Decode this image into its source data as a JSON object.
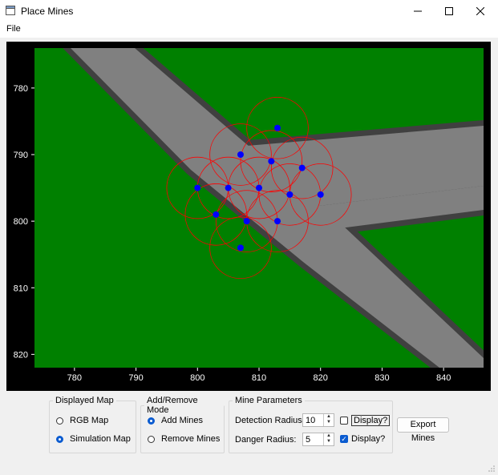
{
  "window": {
    "title": "Place Mines"
  },
  "menu": {
    "file": "File"
  },
  "plot": {
    "x_ticks": [
      "780",
      "790",
      "800",
      "810",
      "820",
      "830",
      "840"
    ],
    "y_ticks": [
      "780",
      "790",
      "800",
      "810",
      "820"
    ],
    "colors": {
      "ground": "#008000",
      "road": "#808080",
      "edge": "#404040",
      "mine": "#0000ff",
      "radius": "#ff0000"
    }
  },
  "chart_data": {
    "type": "scatter",
    "title": "",
    "xlabel": "",
    "ylabel": "",
    "xlim": [
      773.5,
      846.5
    ],
    "ylim": [
      822,
      774
    ],
    "y_inverted": true,
    "mine_points": [
      {
        "x": 813,
        "y": 786
      },
      {
        "x": 807,
        "y": 790
      },
      {
        "x": 812,
        "y": 791
      },
      {
        "x": 817,
        "y": 792
      },
      {
        "x": 800,
        "y": 795
      },
      {
        "x": 805,
        "y": 795
      },
      {
        "x": 810,
        "y": 795
      },
      {
        "x": 815,
        "y": 796
      },
      {
        "x": 820,
        "y": 796
      },
      {
        "x": 803,
        "y": 799
      },
      {
        "x": 808,
        "y": 800
      },
      {
        "x": 813,
        "y": 800
      },
      {
        "x": 807,
        "y": 804
      }
    ],
    "detection_radius": 5,
    "legend": "none"
  },
  "controls": {
    "displayed_map": {
      "title": "Displayed Map",
      "options": [
        {
          "label": "RGB Map",
          "selected": false
        },
        {
          "label": "Simulation Map",
          "selected": true
        }
      ]
    },
    "mode": {
      "title": "Add/Remove Mode",
      "options": [
        {
          "label": "Add Mines",
          "selected": true
        },
        {
          "label": "Remove Mines",
          "selected": false
        }
      ]
    },
    "params": {
      "title": "Mine Parameters",
      "detection_label": "Detection Radius:",
      "detection_value": "10",
      "detection_display": "Display?",
      "detection_checked": false,
      "danger_label": "Danger Radius:",
      "danger_value": "5",
      "danger_display": "Display?",
      "danger_checked": true
    },
    "export_label": "Export Mines"
  }
}
